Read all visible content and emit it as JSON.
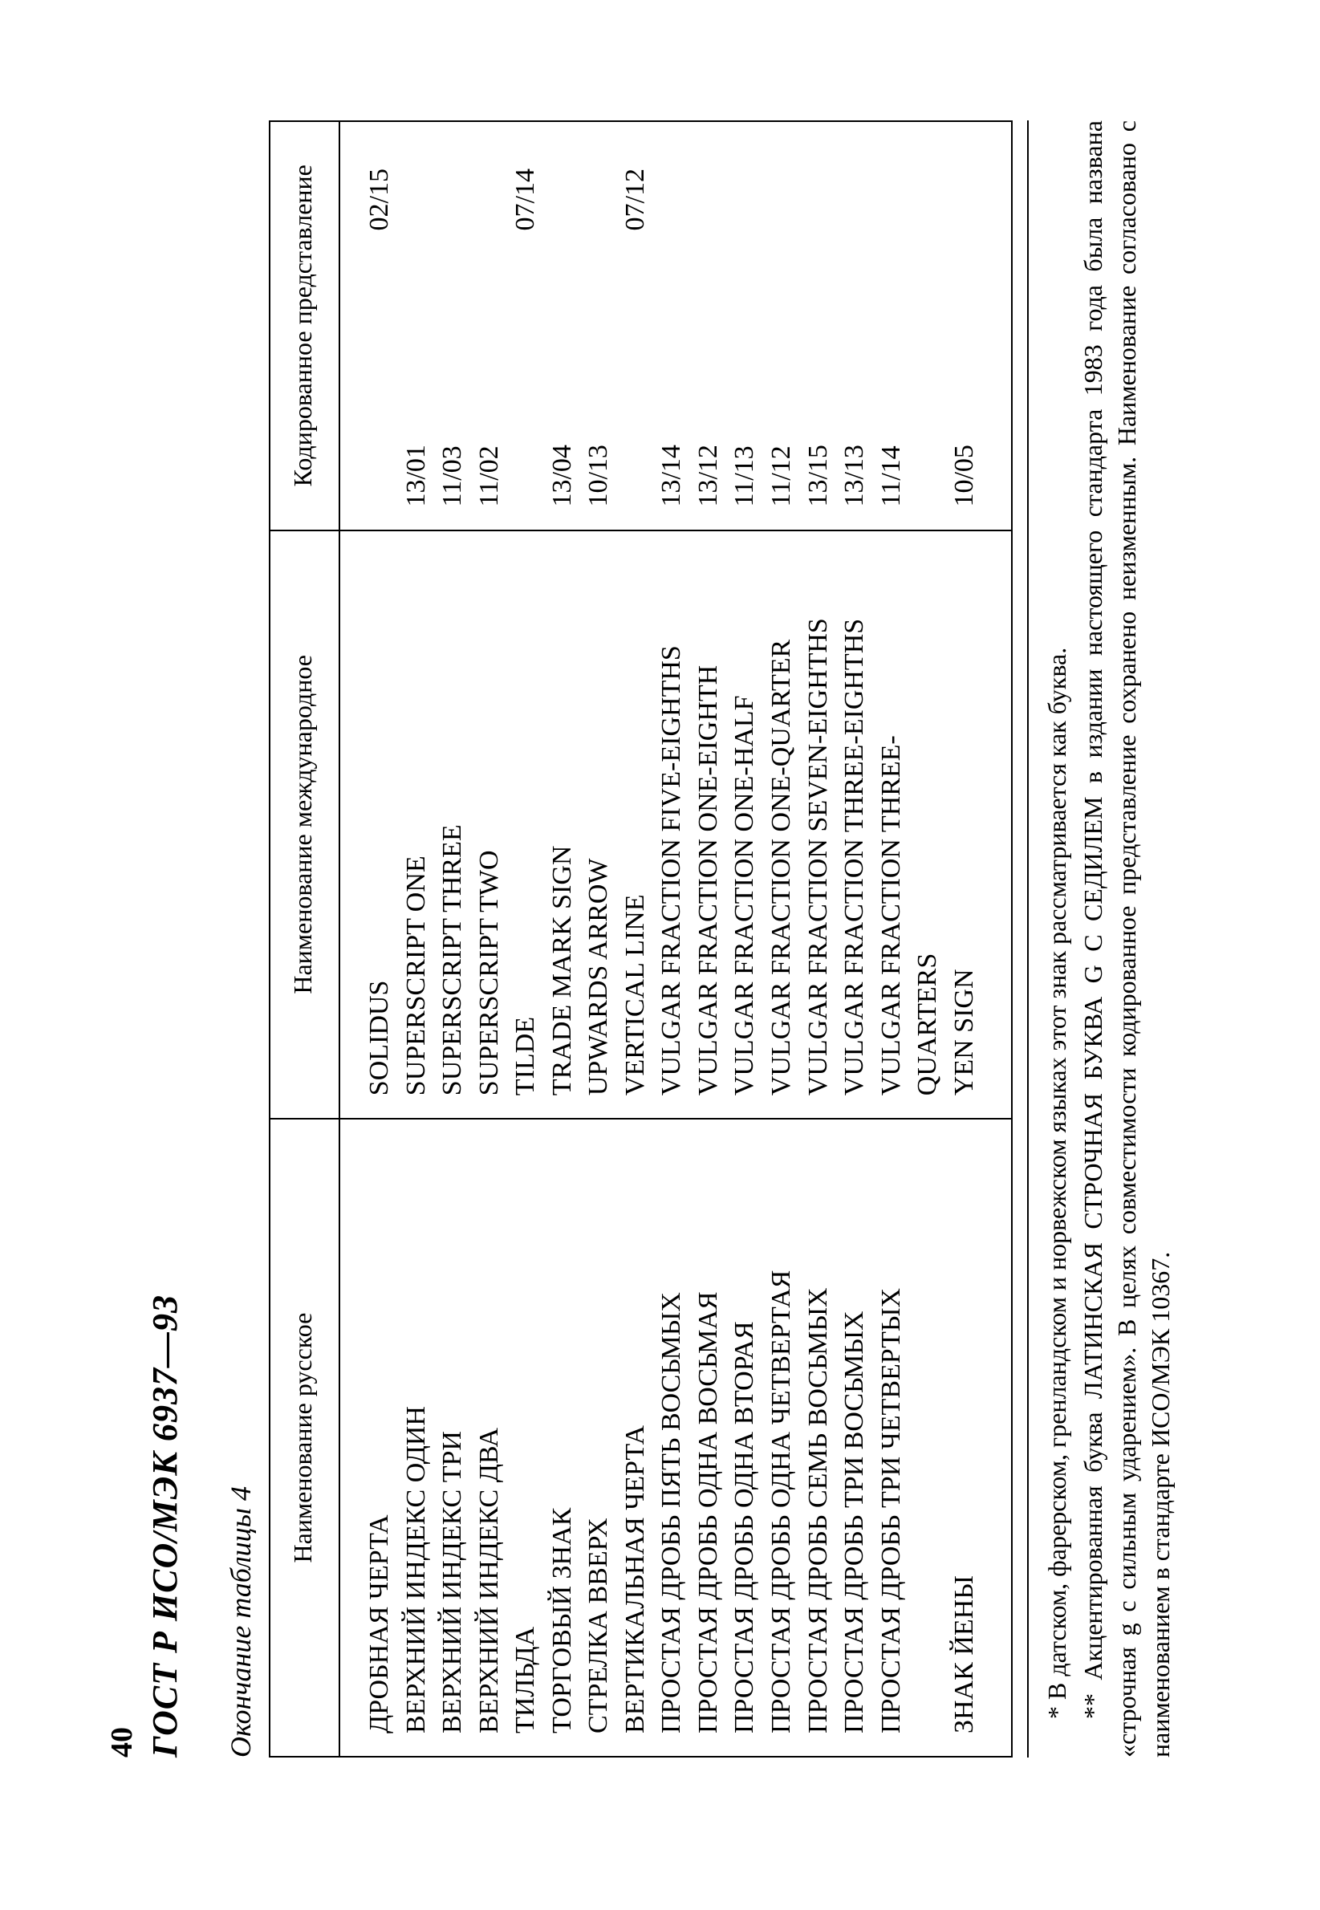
{
  "page_number": "40",
  "standard_header": "ГОСТ  Р  ИСО/МЭК  6937—93",
  "table_caption": "Окончание таблицы 4",
  "columns": {
    "ru": "Наименование русское",
    "en": "Наименование международное",
    "code": "Кодированное представление"
  },
  "rows": [
    {
      "ru": "ДРОБНАЯ ЧЕРТА",
      "en": "SOLIDUS",
      "c1": "",
      "c2": "02/15"
    },
    {
      "ru": "ВЕРХНИЙ ИНДЕКС ОДИН",
      "en": "SUPERSCRIPT ONE",
      "c1": "13/01",
      "c2": ""
    },
    {
      "ru": "ВЕРХНИЙ ИНДЕКС ТРИ",
      "en": "SUPERSCRIPT THREE",
      "c1": "11/03",
      "c2": ""
    },
    {
      "ru": "ВЕРХНИЙ ИНДЕКС ДВА",
      "en": "SUPERSCRIPT TWO",
      "c1": "11/02",
      "c2": ""
    },
    {
      "ru": "ТИЛЬДА",
      "en": "TILDE",
      "c1": "",
      "c2": "07/14"
    },
    {
      "ru": "ТОРГОВЫЙ ЗНАК",
      "en": "TRADE MARK SIGN",
      "c1": "13/04",
      "c2": ""
    },
    {
      "ru": "СТРЕЛКА ВВЕРХ",
      "en": "UPWARDS ARROW",
      "c1": "10/13",
      "c2": ""
    },
    {
      "ru": "ВЕРТИКАЛЬНАЯ ЧЕРТА",
      "en": "VERTICAL LINE",
      "c1": "",
      "c2": "07/12"
    },
    {
      "ru": "ПРОСТАЯ ДРОБЬ ПЯТЬ ВОСЬМЫХ",
      "en": "VULGAR FRACTION FIVE-EIGHTHS",
      "c1": "13/14",
      "c2": ""
    },
    {
      "ru": "ПРОСТАЯ ДРОБЬ ОДНА ВОСЬМАЯ",
      "en": "VULGAR FRACTION ONE-EIGHTH",
      "c1": "13/12",
      "c2": ""
    },
    {
      "ru": "ПРОСТАЯ ДРОБЬ ОДНА ВТОРАЯ",
      "en": "VULGAR FRACTION ONE-HALF",
      "c1": "11/13",
      "c2": ""
    },
    {
      "ru": "ПРОСТАЯ ДРОБЬ ОДНА ЧЕТВЕРТАЯ",
      "en": "VULGAR FRACTION ONE-QUARTER",
      "c1": "11/12",
      "c2": ""
    },
    {
      "ru": "ПРОСТАЯ ДРОБЬ СЕМЬ ВОСЬМЫХ",
      "en": "VULGAR FRACTION SEVEN-EIGHTHS",
      "c1": "13/15",
      "c2": ""
    },
    {
      "ru": "ПРОСТАЯ ДРОБЬ ТРИ ВОСЬМЫХ",
      "en": "VULGAR FRACTION THREE-EIGHTHS",
      "c1": "13/13",
      "c2": ""
    },
    {
      "ru": "ПРОСТАЯ ДРОБЬ ТРИ ЧЕТВЕРТЫХ",
      "en": "VULGAR FRACTION THREE-",
      "c1": "11/14",
      "c2": ""
    },
    {
      "ru": "",
      "en": "QUARTERS",
      "c1": "",
      "c2": ""
    },
    {
      "ru": "ЗНАК ЙЕНЫ",
      "en": "YEN SIGN",
      "c1": "10/05",
      "c2": ""
    }
  ],
  "footnotes": [
    "* В датском, фарерском, гренландском и норвежском языках этот знак рассматривается как буква.",
    "** Акцентированная буква ЛАТИНСКАЯ СТРОЧНАЯ БУКВА G С СЕДИЛЕМ в издании настоящего стандарта 1983 года была названа «строчная g с сильным ударением». В целях совместимости кодированное представление сохранено неизменным. Наименование согласовано с наименованием в стандарте ИСО/МЭК 10367."
  ]
}
